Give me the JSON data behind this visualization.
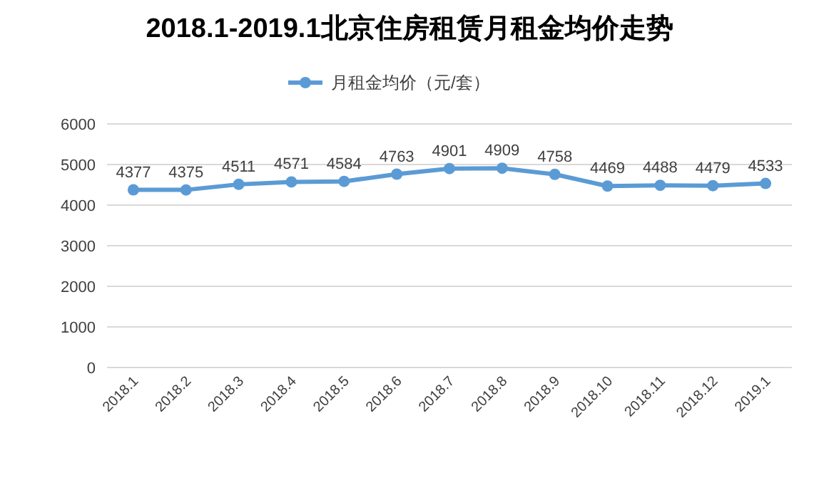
{
  "chart_data": {
    "type": "line",
    "title": "2018.1-2019.1北京住房租赁月租金均价走势",
    "categories": [
      "2018.1",
      "2018.2",
      "2018.3",
      "2018.4",
      "2018.5",
      "2018.6",
      "2018.7",
      "2018.8",
      "2018.9",
      "2018.10",
      "2018.11",
      "2018.12",
      "2019.1"
    ],
    "series": [
      {
        "name": "月租金均价（元/套）",
        "color": "#5b9bd5",
        "values": [
          4377,
          4375,
          4511,
          4571,
          4584,
          4763,
          4901,
          4909,
          4758,
          4469,
          4488,
          4479,
          4533
        ]
      }
    ],
    "ylim": [
      0,
      6000
    ],
    "yticks": [
      0,
      1000,
      2000,
      3000,
      4000,
      5000,
      6000
    ],
    "grid": "y",
    "legend": "top",
    "marker": "circle",
    "line_style": "solid",
    "data_labels": true
  }
}
